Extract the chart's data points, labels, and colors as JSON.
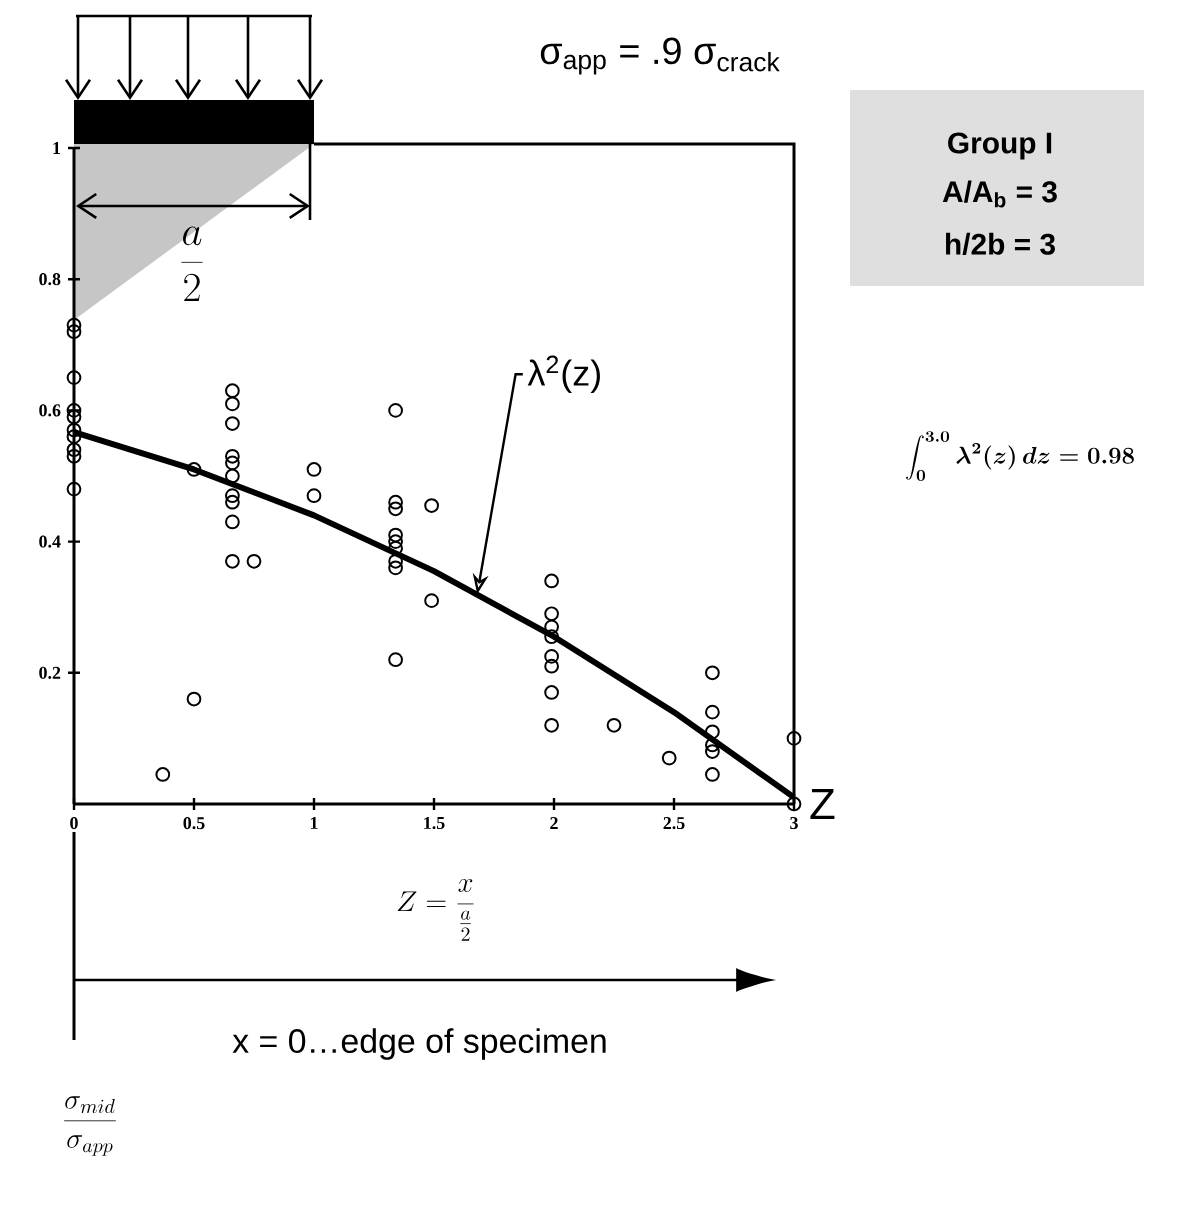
{
  "chart_data": {
    "type": "scatter",
    "xlabel": "Z",
    "xlim": [
      0,
      3
    ],
    "ylim": [
      0,
      1
    ],
    "xticks": [
      0,
      0.5,
      1,
      1.5,
      2,
      2.5,
      3
    ],
    "yticks": [
      0.2,
      0.4,
      0.6,
      0.8,
      1
    ],
    "legend": false,
    "series": [
      {
        "type": "scatter",
        "color": "#000000",
        "marker": "circle",
        "x": [
          0,
          0,
          0,
          0,
          0,
          0,
          0,
          0,
          0,
          0,
          0.5,
          0.5,
          0.37,
          0.66,
          0.66,
          0.66,
          0.66,
          0.66,
          0.66,
          0.66,
          0.66,
          0.66,
          0.66,
          0.75,
          1.0,
          1.0,
          1.34,
          1.34,
          1.34,
          1.34,
          1.34,
          1.34,
          1.34,
          1.34,
          1.34,
          1.49,
          1.49,
          1.99,
          1.99,
          1.99,
          1.99,
          1.99,
          1.99,
          1.99,
          1.99,
          2.25,
          2.48,
          2.66,
          2.66,
          2.66,
          2.66,
          2.66,
          2.66,
          3.0,
          3.0
        ],
        "values": [
          0.73,
          0.72,
          0.65,
          0.6,
          0.59,
          0.57,
          0.56,
          0.54,
          0.53,
          0.48,
          0.51,
          0.16,
          0.045,
          0.63,
          0.61,
          0.58,
          0.53,
          0.52,
          0.5,
          0.47,
          0.46,
          0.43,
          0.37,
          0.37,
          0.51,
          0.47,
          0.6,
          0.46,
          0.45,
          0.41,
          0.4,
          0.39,
          0.37,
          0.36,
          0.22,
          0.455,
          0.31,
          0.34,
          0.29,
          0.27,
          0.255,
          0.225,
          0.21,
          0.17,
          0.12,
          0.12,
          0.07,
          0.2,
          0.14,
          0.11,
          0.09,
          0.08,
          0.045,
          0.1,
          0
        ]
      },
      {
        "type": "line",
        "name": "λ$^{2}$(z)",
        "color": "#000000",
        "marker": "none",
        "line_style": "solid",
        "x": [
          0,
          0.5,
          1,
          1.5,
          2,
          2.5,
          3
        ],
        "values": [
          0.567,
          0.51,
          0.44,
          0.355,
          0.255,
          0.14,
          0.01
        ]
      }
    ],
    "annotations": [
      "σ$_{app}$ = .9 σ$_{crack}$",
      "Group I",
      "A/A$_{b}$ = 3",
      "h/2b = 3",
      "\\int_0^{3.0} \\lambda^2(z)\\,dz = 0.98",
      "\\frac{a}{2}",
      "Z = \\frac{x}{\\frac{a}{2}}",
      "x = 0…edge of specimen",
      "\\frac{\\sigma_{mid}}{\\sigma_{app}}"
    ]
  }
}
